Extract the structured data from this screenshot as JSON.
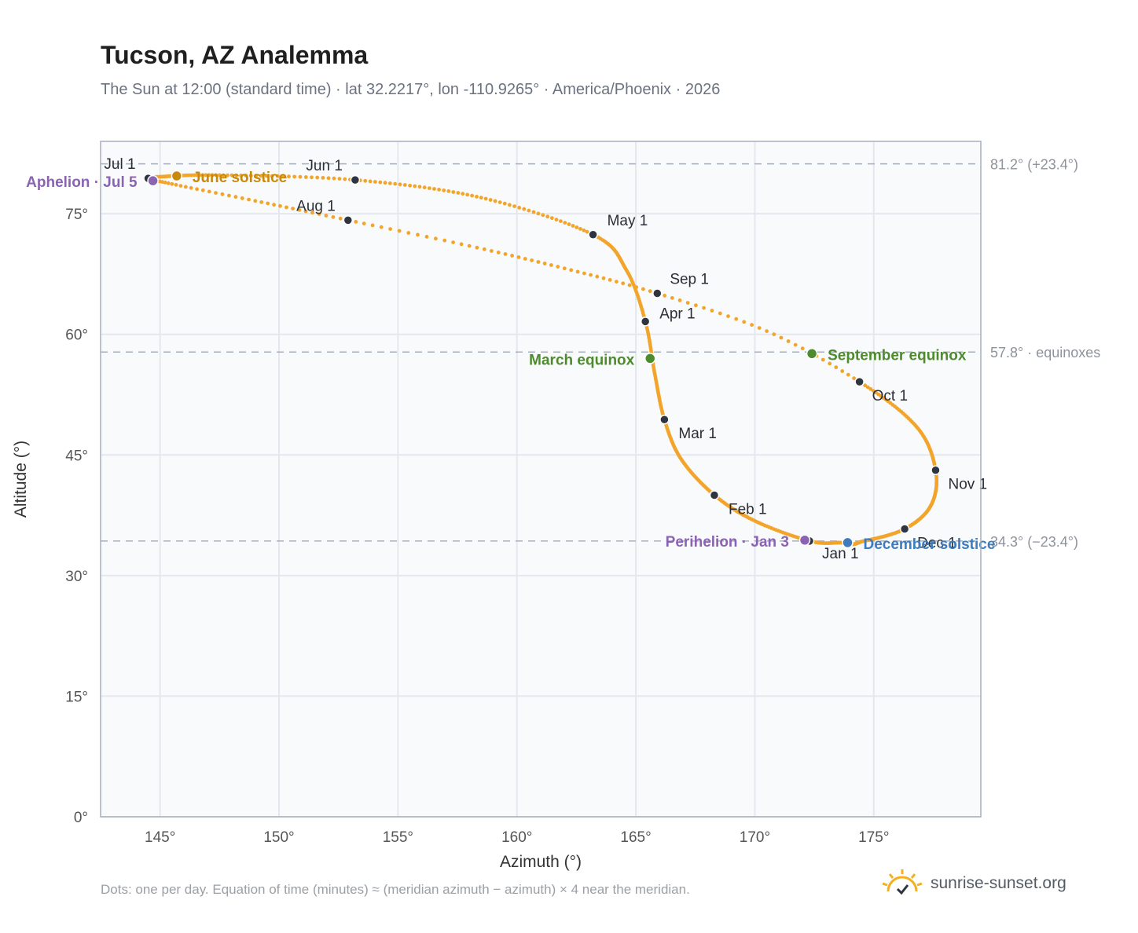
{
  "title": "Tucson, AZ Analemma",
  "subtitle": "The Sun at 12:00 (standard time) · lat 32.2217°, lon -110.9265° · America/Phoenix · 2026",
  "footnote": "Dots: one per day. Equation of time (minutes) ≈ (meridian azimuth − azimuth) × 4 near the meridian.",
  "brand": {
    "name": "sunrise-sunset.org",
    "icon": "sun-logo-icon"
  },
  "colors": {
    "curve": "#f2a52a",
    "month_marker": "#2f3540",
    "june": "#c98a0c",
    "equinox": "#4e8b2d",
    "december": "#3d7cbf",
    "perihelion": "#8b63b3",
    "grid": "#e4e8ee",
    "plot_bg": "#f8fafc",
    "ref_line": "#a8b0bb"
  },
  "chart_data": {
    "type": "scatter",
    "title": "Tucson, AZ Analemma",
    "xlabel": "Azimuth (°)",
    "ylabel": "Altitude (°)",
    "xlim": [
      142.5,
      179.5
    ],
    "ylim": [
      0,
      84
    ],
    "xticks": [
      145,
      150,
      155,
      160,
      165,
      170,
      175
    ],
    "xtick_labels": [
      "145°",
      "150°",
      "155°",
      "160°",
      "165°",
      "170°",
      "175°"
    ],
    "yticks": [
      0,
      15,
      30,
      45,
      60,
      75
    ],
    "ytick_labels": [
      "0°",
      "15°",
      "30°",
      "45°",
      "60°",
      "75°"
    ],
    "grid": true,
    "reference_lines": [
      {
        "y": 81.2,
        "label": "81.2° (+23.4°)"
      },
      {
        "y": 57.8,
        "label": "57.8° · equinoxes"
      },
      {
        "y": 34.3,
        "label": "34.3° (−23.4°)"
      }
    ],
    "month_points": [
      {
        "label": "Jan 1",
        "x": 172.3,
        "y": 34.3
      },
      {
        "label": "Feb 1",
        "x": 168.3,
        "y": 40.0
      },
      {
        "label": "Mar 1",
        "x": 166.2,
        "y": 49.4
      },
      {
        "label": "Apr 1",
        "x": 165.4,
        "y": 61.6
      },
      {
        "label": "May 1",
        "x": 163.2,
        "y": 72.4
      },
      {
        "label": "Jun 1",
        "x": 153.2,
        "y": 79.2
      },
      {
        "label": "Jul 1",
        "x": 144.5,
        "y": 79.4
      },
      {
        "label": "Aug 1",
        "x": 152.9,
        "y": 74.2
      },
      {
        "label": "Sep 1",
        "x": 165.9,
        "y": 65.1
      },
      {
        "label": "Oct 1",
        "x": 174.4,
        "y": 54.1
      },
      {
        "label": "Nov 1",
        "x": 177.6,
        "y": 43.1
      },
      {
        "label": "Dec 1",
        "x": 176.3,
        "y": 35.8
      }
    ],
    "events": [
      {
        "label": "June solstice",
        "x": 145.7,
        "y": 79.7,
        "color": "june"
      },
      {
        "label": "Aphelion · Jul 5",
        "x": 144.7,
        "y": 79.1,
        "color": "perihelion"
      },
      {
        "label": "March equinox",
        "x": 165.6,
        "y": 57.0,
        "color": "equinox"
      },
      {
        "label": "September equinox",
        "x": 172.4,
        "y": 57.6,
        "color": "equinox"
      },
      {
        "label": "December solstice",
        "x": 173.9,
        "y": 34.1,
        "color": "december"
      },
      {
        "label": "Perihelion · Jan 3",
        "x": 172.1,
        "y": 34.4,
        "color": "perihelion"
      }
    ],
    "path": [
      [
        172.3,
        34.3
      ],
      [
        170.0,
        36.8
      ],
      [
        168.3,
        40.0
      ],
      [
        166.9,
        44.5
      ],
      [
        166.2,
        49.4
      ],
      [
        165.8,
        55.0
      ],
      [
        165.4,
        61.6
      ],
      [
        164.6,
        68.0
      ],
      [
        163.2,
        72.4
      ],
      [
        158.5,
        77.0
      ],
      [
        153.2,
        79.2
      ],
      [
        147.5,
        79.8
      ],
      [
        145.0,
        79.6
      ],
      [
        144.5,
        79.4
      ],
      [
        145.5,
        78.7
      ],
      [
        149.0,
        76.6
      ],
      [
        152.9,
        74.2
      ],
      [
        158.0,
        71.0
      ],
      [
        162.0,
        68.2
      ],
      [
        165.9,
        65.1
      ],
      [
        170.5,
        60.4
      ],
      [
        174.4,
        54.1
      ],
      [
        176.8,
        48.5
      ],
      [
        177.6,
        43.1
      ],
      [
        177.4,
        38.7
      ],
      [
        176.3,
        35.8
      ],
      [
        174.6,
        34.3
      ],
      [
        173.6,
        34.1
      ],
      [
        172.3,
        34.3
      ]
    ],
    "sparse_range": [
      13,
      21
    ]
  }
}
